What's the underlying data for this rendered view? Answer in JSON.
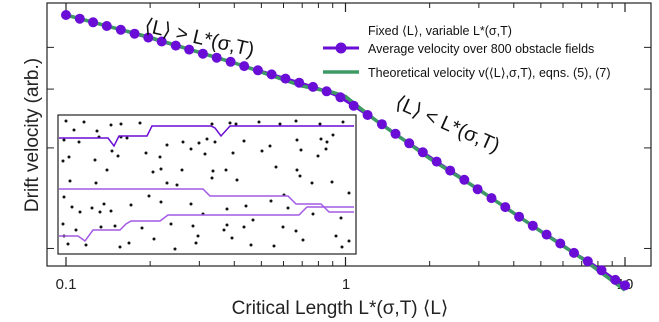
{
  "chart_data": {
    "type": "line",
    "xscale": "log",
    "yscale": "log",
    "xlim": [
      0.08,
      12.5
    ],
    "xlabel": "Critical Length L*(σ,T)  ⟨L⟩",
    "ylabel": "Drift velocity (arb.)",
    "xticks": [
      {
        "value": 0.1,
        "label": "0.1"
      },
      {
        "value": 1,
        "label": "1"
      },
      {
        "value": 10,
        "label": "10"
      }
    ],
    "legend": {
      "position": "top-right",
      "title": "Fixed ⟨L⟩, variable L*(σ,T)",
      "entries": [
        {
          "label": "Average velocity over 800 obstacle fields",
          "color": "#6a0dd6",
          "marker": "circle"
        },
        {
          "label": "Theoretical velocity v(⟨L⟩,σ,T), eqns. (5), (7)",
          "color": "#3e9a64",
          "marker": "none"
        }
      ]
    },
    "annotations": [
      {
        "text": "⟨L⟩ > L*(σ,T)",
        "x": 0.36,
        "y": 0.74
      },
      {
        "text": "⟨L⟩ < L*(σ,T)",
        "x": 2.0,
        "y": 0.315
      }
    ],
    "series": [
      {
        "name": "Average velocity over 800 obstacle fields",
        "color": "#6a0dd6",
        "x": [
          0.1,
          0.112,
          0.125,
          0.14,
          0.157,
          0.176,
          0.197,
          0.22,
          0.247,
          0.276,
          0.309,
          0.346,
          0.388,
          0.434,
          0.486,
          0.544,
          0.61,
          0.683,
          0.765,
          0.856,
          0.959,
          1.07,
          1.2,
          1.35,
          1.51,
          1.69,
          1.89,
          2.12,
          2.37,
          2.66,
          2.97,
          3.33,
          3.73,
          4.18,
          4.68,
          5.24,
          5.87,
          6.57,
          7.36,
          8.24,
          9.23,
          10.0
        ],
        "y": [
          1.0,
          0.975,
          0.951,
          0.927,
          0.903,
          0.879,
          0.856,
          0.833,
          0.81,
          0.788,
          0.766,
          0.745,
          0.724,
          0.703,
          0.683,
          0.664,
          0.645,
          0.627,
          0.609,
          0.591,
          0.567,
          0.535,
          0.502,
          0.471,
          0.441,
          0.413,
          0.388,
          0.364,
          0.342,
          0.321,
          0.301,
          0.283,
          0.266,
          0.249,
          0.234,
          0.22,
          0.207,
          0.194,
          0.183,
          0.172,
          0.161,
          0.155
        ]
      },
      {
        "name": "Theoretical velocity v(⟨L⟩,σ,T), eqns. (5), (7)",
        "color": "#3e9a64",
        "x": [
          0.1,
          0.2,
          0.4,
          0.7,
          0.9,
          1.0,
          1.1,
          1.3,
          1.6,
          2.0,
          3.0,
          5.0,
          7.0,
          10.0
        ],
        "y": [
          1.0,
          0.857,
          0.719,
          0.613,
          0.587,
          0.57,
          0.535,
          0.48,
          0.425,
          0.372,
          0.3,
          0.225,
          0.187,
          0.15
        ]
      }
    ]
  },
  "inset": {
    "series_colors": [
      "#6a0dd6",
      "#a35ae6",
      "#a35ae6"
    ],
    "point_color": "#111111"
  }
}
